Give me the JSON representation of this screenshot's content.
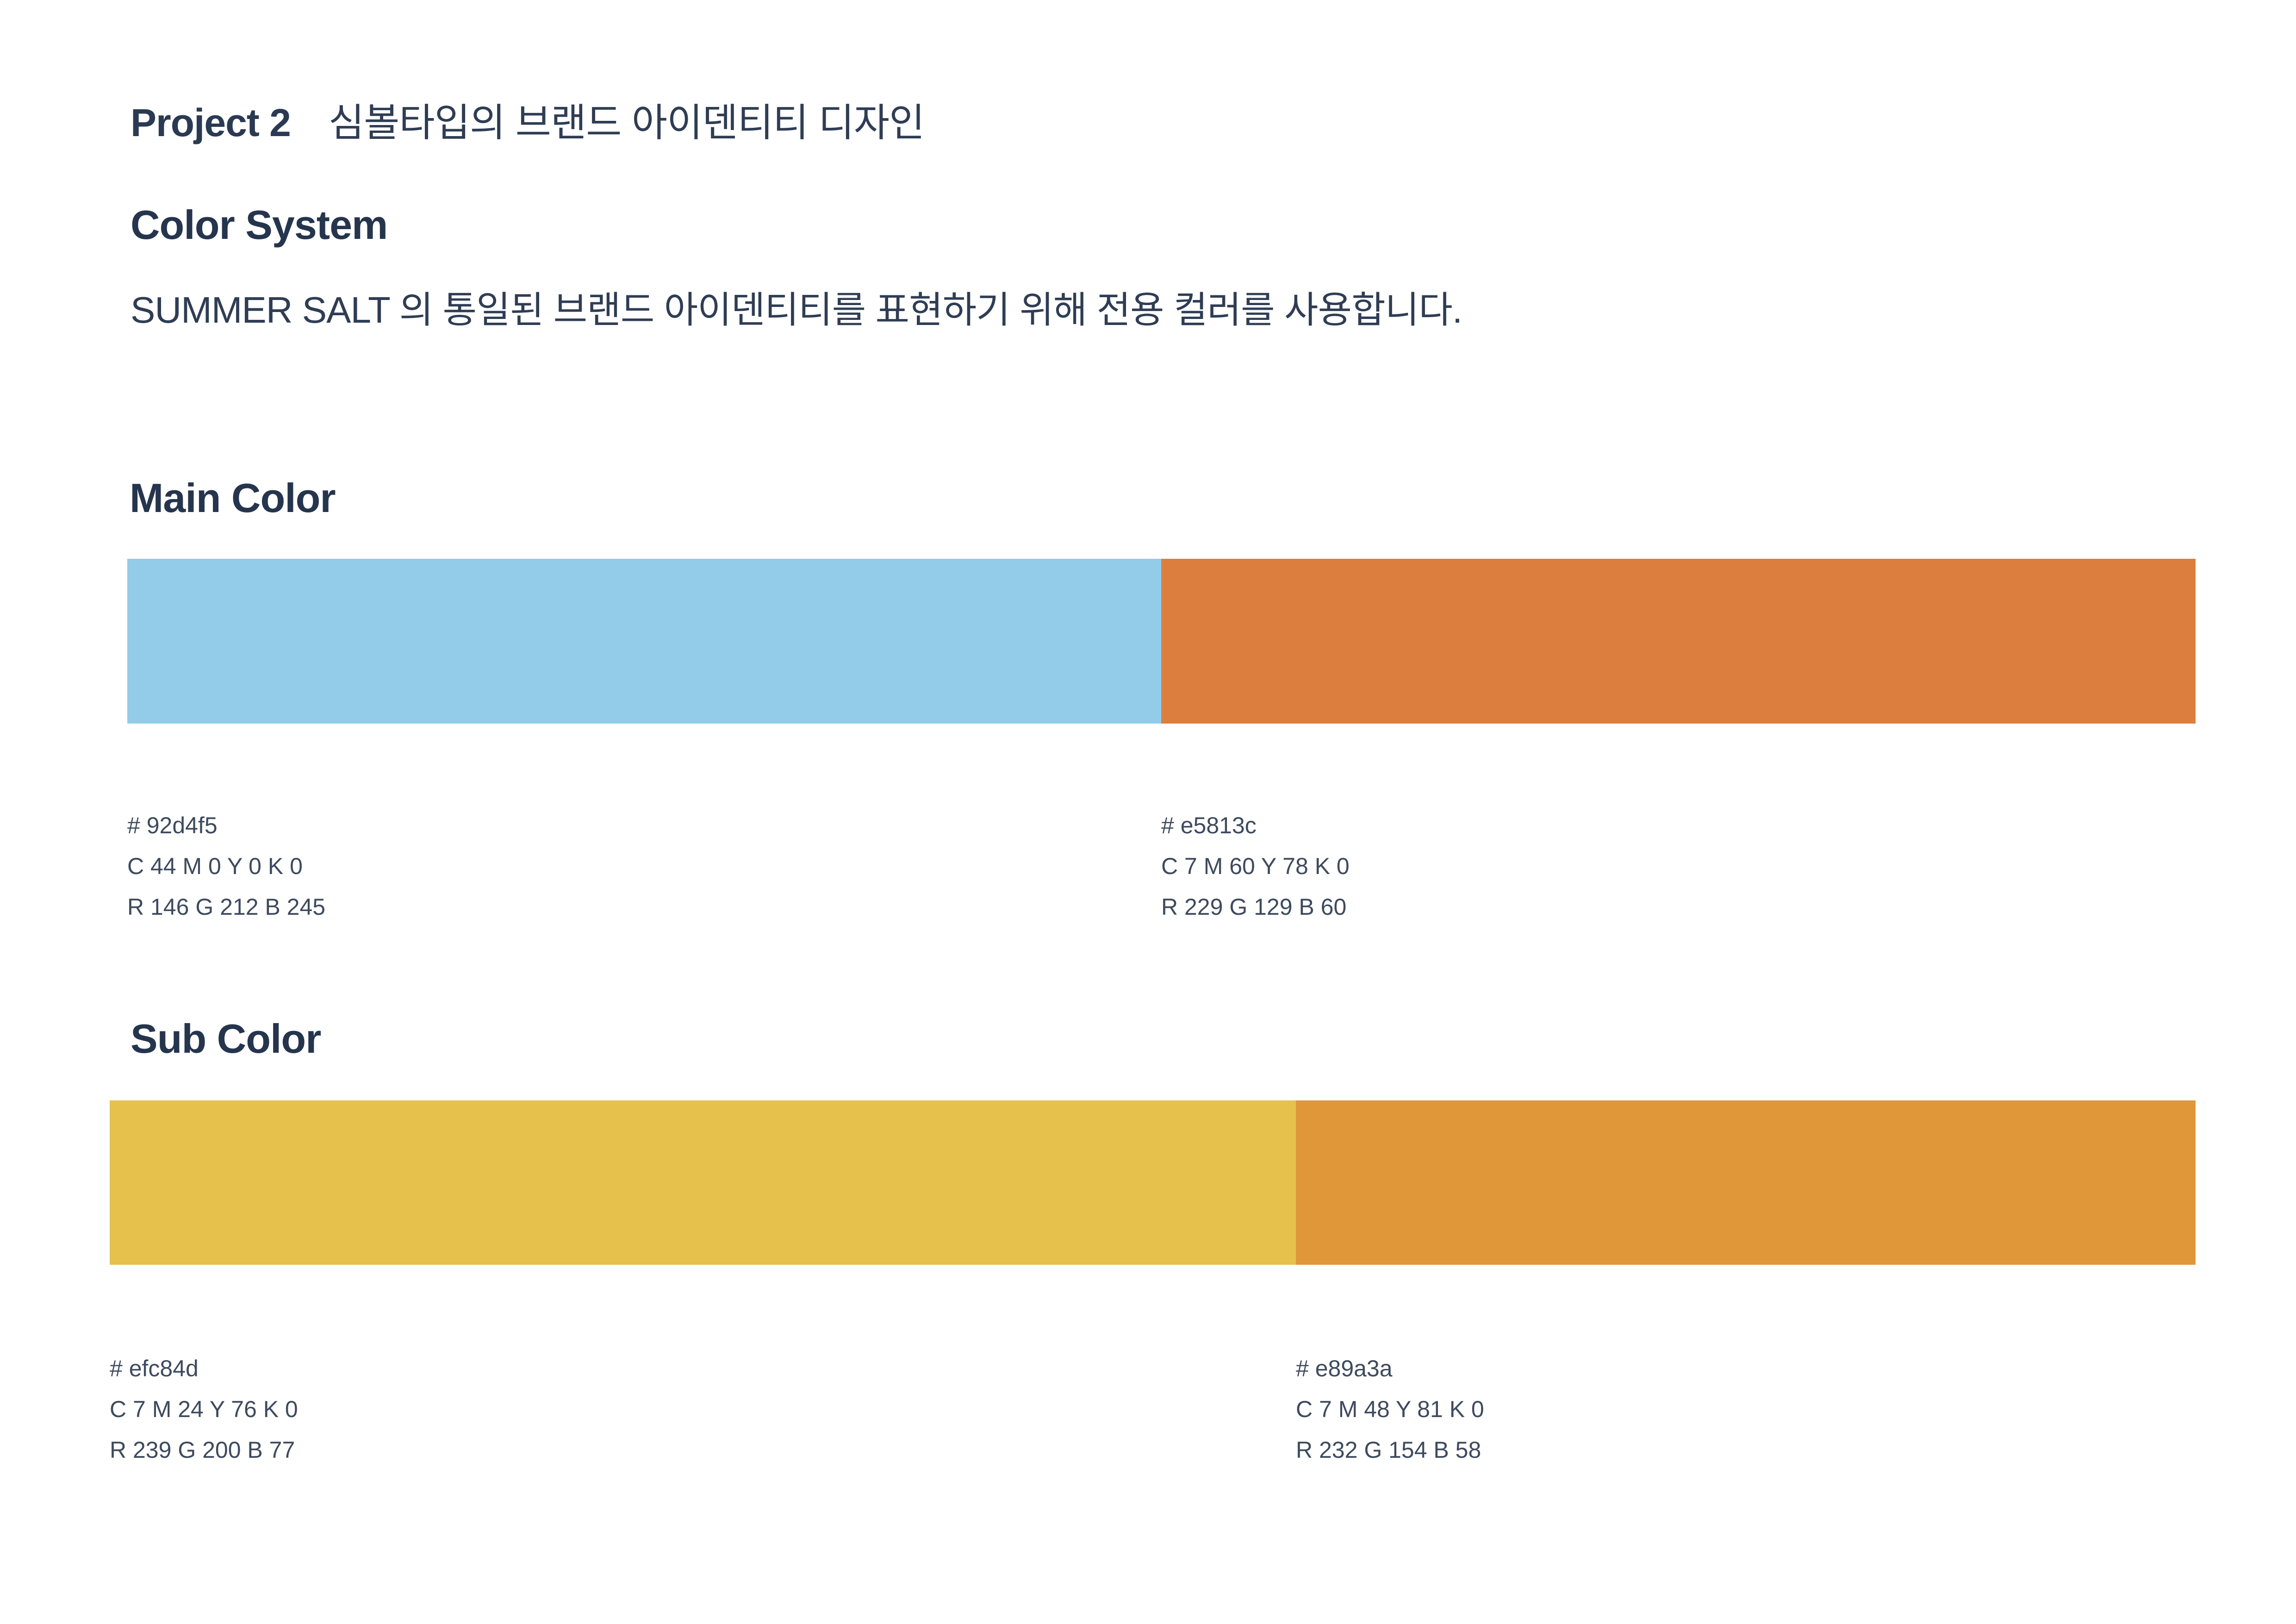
{
  "header": {
    "project_label": "Project 2",
    "project_title": "심볼타입의 브랜드 아이덴티티 디자인"
  },
  "color_system": {
    "heading": "Color System",
    "description": "SUMMER SALT 의 통일된 브랜드 아이덴티티를 표현하기 위해 전용 컬러를 사용합니다."
  },
  "main_color": {
    "heading": "Main Color",
    "swatches": [
      {
        "hex_label": "# 92d4f5",
        "cmyk": "C 44 M 0 Y 0 K 0",
        "rgb": "R 146 G 212 B 245",
        "color": "#92cce9"
      },
      {
        "hex_label": "# e5813c",
        "cmyk": "C 7 M 60 Y 78 K 0",
        "rgb": "R 229 G 129 B 60",
        "color": "#dc7e3e"
      }
    ]
  },
  "sub_color": {
    "heading": "Sub Color",
    "swatches": [
      {
        "hex_label": "# efc84d",
        "cmyk": "C 7 M 24 Y 76 K 0",
        "rgb": "R 239 G 200 B 77",
        "color": "#e6c24d"
      },
      {
        "hex_label": "# e89a3a",
        "cmyk": "C 7 M 48 Y 81 K 0",
        "rgb": "R 232 G 154 B 58",
        "color": "#df973a"
      }
    ]
  }
}
